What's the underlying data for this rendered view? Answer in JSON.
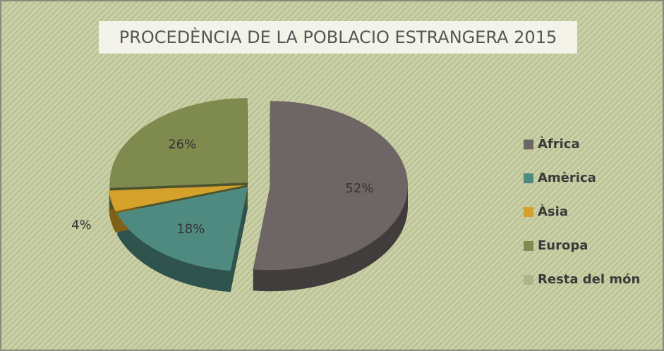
{
  "chart_data": {
    "type": "pie",
    "title": "PROCEDÈNCIA DE LA POBLACIO ESTRANGERA 2015",
    "categories": [
      "Àfrica",
      "Amèrica",
      "Àsia",
      "Europa",
      "Resta del món"
    ],
    "values": [
      52,
      18,
      4,
      26,
      0
    ],
    "value_labels": [
      "52%",
      "18%",
      "4%",
      "26%",
      null
    ],
    "colors": [
      "#6e6565",
      "#4f8a80",
      "#d4a12a",
      "#7f8a4e",
      "#a9b78a"
    ],
    "legend": "right"
  }
}
